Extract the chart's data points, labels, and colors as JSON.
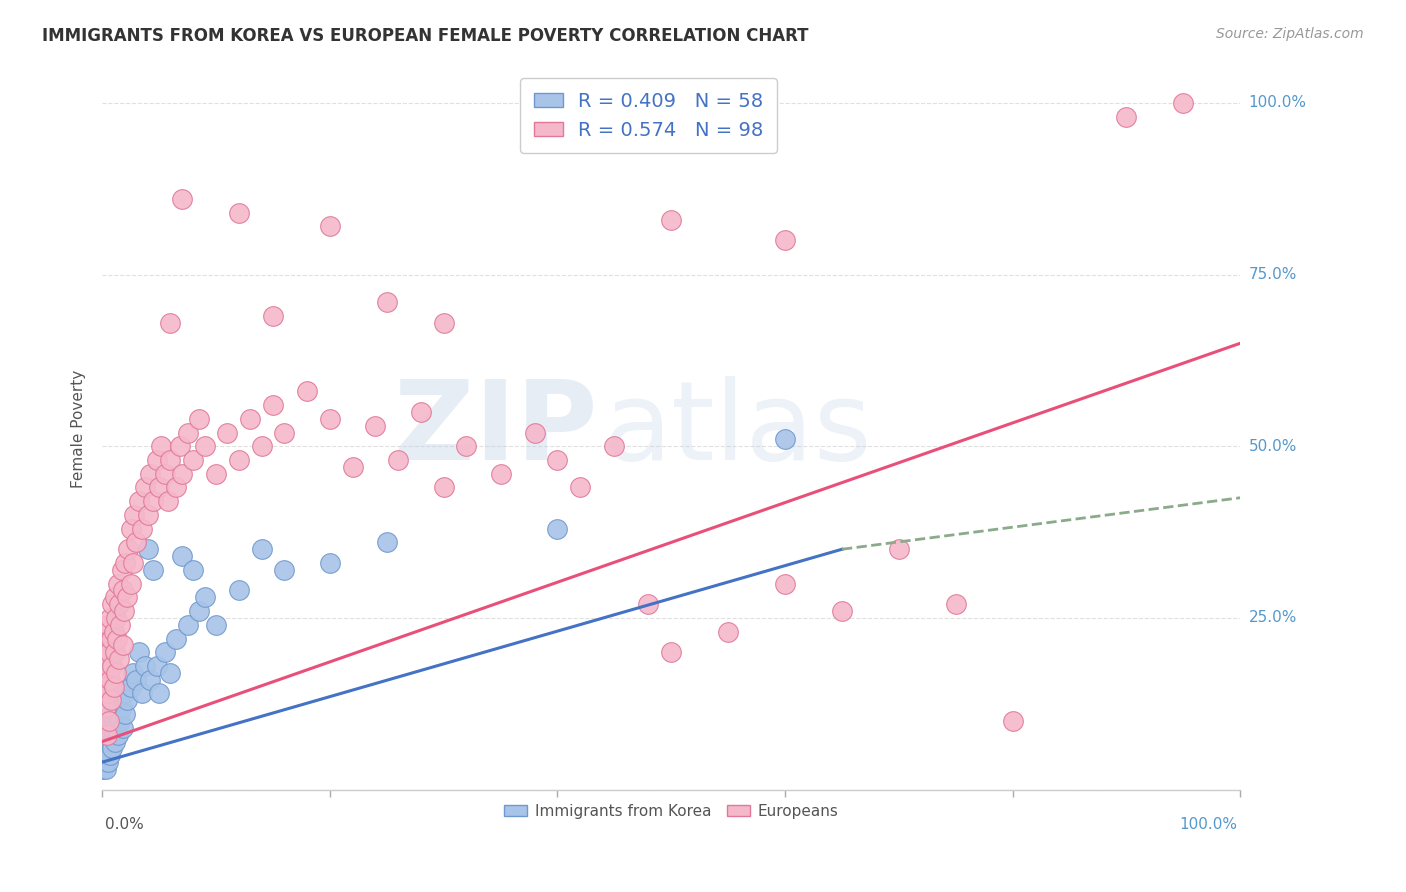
{
  "title": "IMMIGRANTS FROM KOREA VS EUROPEAN FEMALE POVERTY CORRELATION CHART",
  "source": "Source: ZipAtlas.com",
  "ylabel": "Female Poverty",
  "korea_color": "#a8c4e8",
  "european_color": "#f5b8cb",
  "korea_edge_color": "#7098cc",
  "european_edge_color": "#e07898",
  "korea_R": 0.409,
  "korea_N": 58,
  "european_R": 0.574,
  "european_N": 98,
  "watermark_zip": "ZIP",
  "watermark_atlas": "atlas",
  "background_color": "#ffffff",
  "grid_color": "#dddddd",
  "trend_korea_color": "#4472c4",
  "trend_european_color": "#e8507a",
  "trend_korea_dashed_color": "#8aaa8a",
  "korea_points": [
    [
      0.001,
      0.03
    ],
    [
      0.002,
      0.04
    ],
    [
      0.002,
      0.06
    ],
    [
      0.003,
      0.03
    ],
    [
      0.003,
      0.07
    ],
    [
      0.004,
      0.05
    ],
    [
      0.004,
      0.08
    ],
    [
      0.005,
      0.04
    ],
    [
      0.005,
      0.09
    ],
    [
      0.006,
      0.06
    ],
    [
      0.006,
      0.1
    ],
    [
      0.007,
      0.05
    ],
    [
      0.007,
      0.08
    ],
    [
      0.008,
      0.07
    ],
    [
      0.008,
      0.11
    ],
    [
      0.009,
      0.06
    ],
    [
      0.009,
      0.09
    ],
    [
      0.01,
      0.08
    ],
    [
      0.01,
      0.12
    ],
    [
      0.011,
      0.07
    ],
    [
      0.011,
      0.1
    ],
    [
      0.012,
      0.09
    ],
    [
      0.013,
      0.11
    ],
    [
      0.014,
      0.08
    ],
    [
      0.015,
      0.13
    ],
    [
      0.016,
      0.1
    ],
    [
      0.017,
      0.12
    ],
    [
      0.018,
      0.09
    ],
    [
      0.019,
      0.14
    ],
    [
      0.02,
      0.11
    ],
    [
      0.022,
      0.13
    ],
    [
      0.025,
      0.15
    ],
    [
      0.027,
      0.17
    ],
    [
      0.03,
      0.16
    ],
    [
      0.032,
      0.2
    ],
    [
      0.035,
      0.14
    ],
    [
      0.038,
      0.18
    ],
    [
      0.04,
      0.35
    ],
    [
      0.042,
      0.16
    ],
    [
      0.045,
      0.32
    ],
    [
      0.048,
      0.18
    ],
    [
      0.05,
      0.14
    ],
    [
      0.055,
      0.2
    ],
    [
      0.06,
      0.17
    ],
    [
      0.065,
      0.22
    ],
    [
      0.07,
      0.34
    ],
    [
      0.075,
      0.24
    ],
    [
      0.08,
      0.32
    ],
    [
      0.085,
      0.26
    ],
    [
      0.09,
      0.28
    ],
    [
      0.1,
      0.24
    ],
    [
      0.12,
      0.29
    ],
    [
      0.14,
      0.35
    ],
    [
      0.16,
      0.32
    ],
    [
      0.2,
      0.33
    ],
    [
      0.25,
      0.36
    ],
    [
      0.4,
      0.38
    ],
    [
      0.6,
      0.51
    ]
  ],
  "european_points": [
    [
      0.001,
      0.17
    ],
    [
      0.002,
      0.15
    ],
    [
      0.002,
      0.2
    ],
    [
      0.003,
      0.12
    ],
    [
      0.003,
      0.22
    ],
    [
      0.004,
      0.08
    ],
    [
      0.004,
      0.18
    ],
    [
      0.005,
      0.14
    ],
    [
      0.005,
      0.24
    ],
    [
      0.006,
      0.1
    ],
    [
      0.006,
      0.2
    ],
    [
      0.007,
      0.16
    ],
    [
      0.007,
      0.25
    ],
    [
      0.008,
      0.13
    ],
    [
      0.008,
      0.22
    ],
    [
      0.009,
      0.18
    ],
    [
      0.009,
      0.27
    ],
    [
      0.01,
      0.15
    ],
    [
      0.01,
      0.23
    ],
    [
      0.011,
      0.2
    ],
    [
      0.011,
      0.28
    ],
    [
      0.012,
      0.17
    ],
    [
      0.012,
      0.25
    ],
    [
      0.013,
      0.22
    ],
    [
      0.014,
      0.3
    ],
    [
      0.015,
      0.19
    ],
    [
      0.015,
      0.27
    ],
    [
      0.016,
      0.24
    ],
    [
      0.017,
      0.32
    ],
    [
      0.018,
      0.21
    ],
    [
      0.018,
      0.29
    ],
    [
      0.019,
      0.26
    ],
    [
      0.02,
      0.33
    ],
    [
      0.022,
      0.28
    ],
    [
      0.023,
      0.35
    ],
    [
      0.025,
      0.3
    ],
    [
      0.025,
      0.38
    ],
    [
      0.027,
      0.33
    ],
    [
      0.028,
      0.4
    ],
    [
      0.03,
      0.36
    ],
    [
      0.032,
      0.42
    ],
    [
      0.035,
      0.38
    ],
    [
      0.038,
      0.44
    ],
    [
      0.04,
      0.4
    ],
    [
      0.042,
      0.46
    ],
    [
      0.045,
      0.42
    ],
    [
      0.048,
      0.48
    ],
    [
      0.05,
      0.44
    ],
    [
      0.052,
      0.5
    ],
    [
      0.055,
      0.46
    ],
    [
      0.058,
      0.42
    ],
    [
      0.06,
      0.48
    ],
    [
      0.065,
      0.44
    ],
    [
      0.068,
      0.5
    ],
    [
      0.07,
      0.46
    ],
    [
      0.075,
      0.52
    ],
    [
      0.08,
      0.48
    ],
    [
      0.085,
      0.54
    ],
    [
      0.09,
      0.5
    ],
    [
      0.1,
      0.46
    ],
    [
      0.11,
      0.52
    ],
    [
      0.12,
      0.48
    ],
    [
      0.13,
      0.54
    ],
    [
      0.14,
      0.5
    ],
    [
      0.15,
      0.56
    ],
    [
      0.16,
      0.52
    ],
    [
      0.18,
      0.58
    ],
    [
      0.2,
      0.54
    ],
    [
      0.22,
      0.47
    ],
    [
      0.24,
      0.53
    ],
    [
      0.26,
      0.48
    ],
    [
      0.28,
      0.55
    ],
    [
      0.3,
      0.44
    ],
    [
      0.32,
      0.5
    ],
    [
      0.35,
      0.46
    ],
    [
      0.38,
      0.52
    ],
    [
      0.4,
      0.48
    ],
    [
      0.42,
      0.44
    ],
    [
      0.45,
      0.5
    ],
    [
      0.48,
      0.27
    ],
    [
      0.5,
      0.2
    ],
    [
      0.55,
      0.23
    ],
    [
      0.6,
      0.3
    ],
    [
      0.65,
      0.26
    ],
    [
      0.7,
      0.35
    ],
    [
      0.75,
      0.27
    ],
    [
      0.8,
      0.1
    ],
    [
      0.06,
      0.68
    ],
    [
      0.25,
      0.71
    ],
    [
      0.2,
      0.82
    ],
    [
      0.3,
      0.68
    ],
    [
      0.07,
      0.86
    ],
    [
      0.12,
      0.84
    ],
    [
      0.5,
      0.83
    ],
    [
      0.6,
      0.8
    ],
    [
      0.9,
      0.98
    ],
    [
      0.95,
      1.0
    ],
    [
      0.15,
      0.69
    ]
  ]
}
